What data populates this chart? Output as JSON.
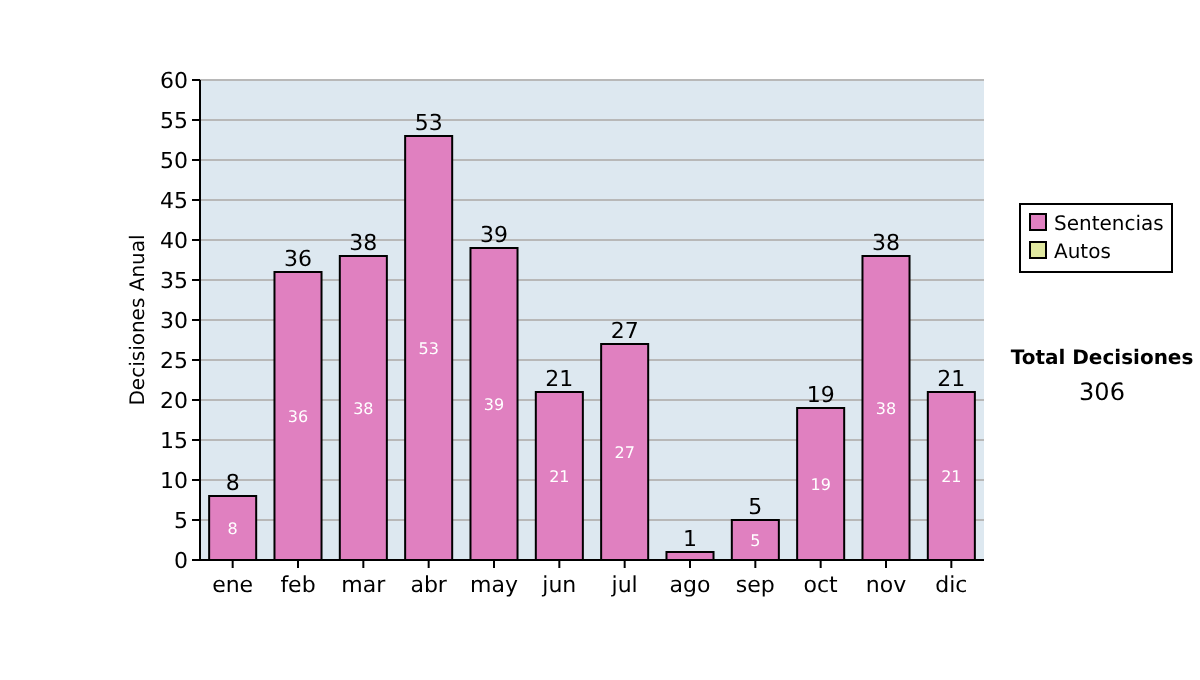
{
  "chart_data": {
    "type": "bar",
    "ylabel": "Decisiones Anual",
    "categories": [
      "ene",
      "feb",
      "mar",
      "abr",
      "may",
      "jun",
      "jul",
      "ago",
      "sep",
      "oct",
      "nov",
      "dic"
    ],
    "series": [
      {
        "name": "Sentencias",
        "color": "#e080c0",
        "values": [
          8,
          36,
          38,
          53,
          39,
          21,
          27,
          1,
          5,
          19,
          38,
          21
        ],
        "value_labels": [
          "8",
          "36",
          "38",
          "53",
          "39",
          "21",
          "27",
          null,
          "5",
          "19",
          "38",
          "21"
        ]
      },
      {
        "name": "Autos",
        "color": "#e0e8a0",
        "values": [
          0,
          0,
          0,
          0,
          0,
          0,
          0,
          0,
          0,
          0,
          0,
          0
        ]
      }
    ],
    "stacked": true,
    "totals": [
      "8",
      "36",
      "38",
      "53",
      "39",
      "21",
      "27",
      "1",
      "5",
      "19",
      "38",
      "21"
    ],
    "ylim": [
      0,
      60
    ],
    "yticks": [
      0,
      5,
      10,
      15,
      20,
      25,
      30,
      35,
      40,
      45,
      50,
      55,
      60
    ],
    "grid": "y",
    "legend": "right",
    "annotations": [
      "Total Decisiones",
      "306"
    ]
  }
}
